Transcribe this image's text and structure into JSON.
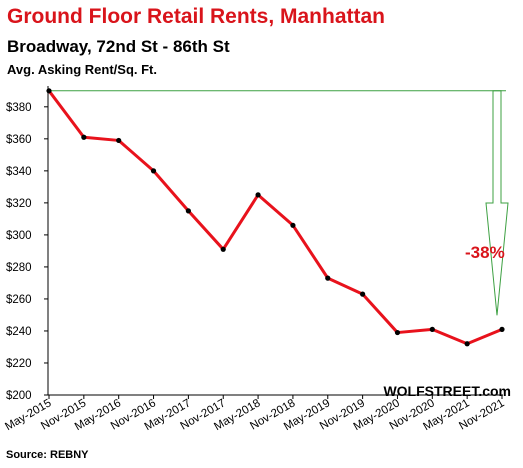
{
  "chart_data": {
    "type": "line",
    "title": "Ground Floor Retail Rents, Manhattan",
    "subtitle": "Broadway, 72nd St - 86th St",
    "ylabel": "Avg. Asking Rent/Sq. Ft.",
    "categories": [
      "May-2015",
      "Nov-2015",
      "May-2016",
      "Nov-2016",
      "May-2017",
      "Nov-2017",
      "May-2018",
      "Nov-2018",
      "May-2019",
      "Nov-2019",
      "May-2020",
      "Nov-2020",
      "May-2021",
      "Nov-2021"
    ],
    "series": [
      {
        "values": [
          390,
          361,
          359,
          340,
          315,
          291,
          325,
          306,
          273,
          263,
          239,
          241,
          232,
          241
        ]
      }
    ],
    "yticks": [
      "$200",
      "$220",
      "$240",
      "$260",
      "$280",
      "$300",
      "$320",
      "$340",
      "$360",
      "$380"
    ],
    "ylim": [
      200,
      393
    ],
    "grid": false,
    "line_color": "#e8121c",
    "annotation": "-38%",
    "source": "Source: REBNY",
    "brand": "WOLFSTREET.com"
  },
  "colors": {
    "title": "#d9141b",
    "annotation": "#d9141b",
    "arrow": "#3da042"
  }
}
